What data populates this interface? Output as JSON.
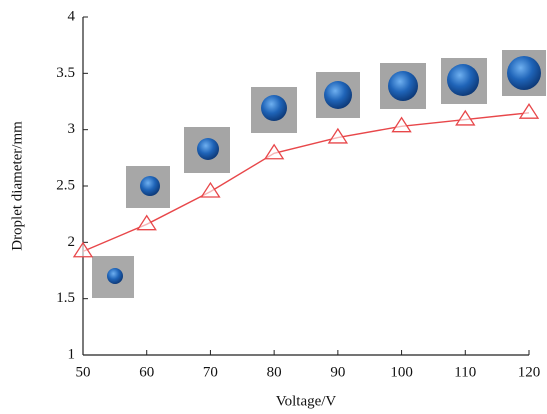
{
  "chart_data": {
    "type": "line",
    "x_label": "Voltage/V",
    "y_label": "Droplet diameter/mm",
    "x": [
      50,
      60,
      70,
      80,
      90,
      100,
      110,
      120
    ],
    "series": [
      {
        "color": "#e8474a",
        "values": [
          1.92,
          2.16,
          2.45,
          2.79,
          2.93,
          3.03,
          3.09,
          3.15
        ]
      }
    ],
    "xlim": [
      50,
      120
    ],
    "xticks": [
      50,
      60,
      70,
      80,
      90,
      100,
      110,
      120
    ],
    "ylim": [
      1,
      4
    ],
    "yticks": [
      1,
      1.5,
      2,
      2.5,
      3,
      3.5,
      4
    ],
    "marker": "triangle-open",
    "grid": false
  }
}
